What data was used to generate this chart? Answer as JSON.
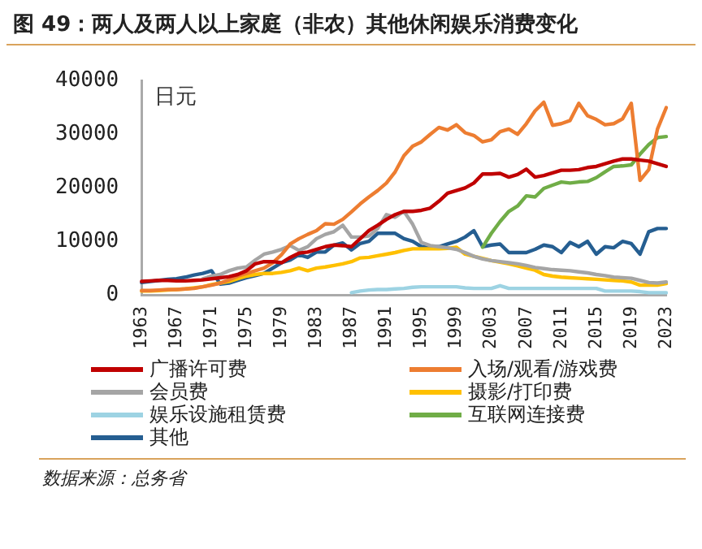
{
  "chart_data": {
    "type": "line",
    "title": "图 49：两人及两人以上家庭（非农）其他休闲娱乐消费变化",
    "ylabel": "日元",
    "categories": [
      "1963",
      null,
      null,
      null,
      "1967",
      null,
      null,
      null,
      "1971",
      null,
      null,
      null,
      "1975",
      null,
      null,
      null,
      "1979",
      null,
      null,
      null,
      "1983",
      null,
      null,
      null,
      "1987",
      null,
      null,
      null,
      "1991",
      null,
      null,
      null,
      "1995",
      null,
      null,
      null,
      "1999",
      null,
      null,
      null,
      "2003",
      null,
      null,
      null,
      "2007",
      null,
      null,
      null,
      "2011",
      null,
      null,
      null,
      "2015",
      null,
      null,
      null,
      "2019",
      null,
      null,
      null,
      "2023"
    ],
    "ylim": [
      0,
      40000
    ],
    "yticks": [
      0,
      10000,
      20000,
      30000,
      40000
    ],
    "grid": false,
    "legend": "bottom",
    "marker": "none",
    "line_style": "solid",
    "series": [
      {
        "name": "广播许可费",
        "color": "#c00000",
        "values": [
          2500,
          2600,
          2700,
          2700,
          2600,
          2600,
          2700,
          2800,
          3000,
          3200,
          3400,
          3800,
          4500,
          5800,
          6200,
          6200,
          6000,
          7000,
          7800,
          8000,
          8500,
          9000,
          9300,
          9200,
          9000,
          10500,
          12000,
          13000,
          14100,
          15000,
          15600,
          15600,
          15800,
          16200,
          17500,
          19000,
          19500,
          20000,
          20900,
          22600,
          22600,
          22700,
          22000,
          22500,
          23500,
          22000,
          22300,
          22800,
          23300,
          23300,
          23400,
          23800,
          24000,
          24500,
          25000,
          25400,
          25400,
          25200,
          25000,
          24500,
          24000
        ]
      },
      {
        "name": "入场/观看/游戏费",
        "color": "#ed7d31",
        "values": [
          800,
          800,
          900,
          1000,
          1000,
          1100,
          1200,
          1500,
          1800,
          2200,
          2800,
          3500,
          4000,
          4500,
          5000,
          6000,
          7500,
          9500,
          10500,
          11300,
          12000,
          13300,
          13200,
          14100,
          15500,
          17000,
          18300,
          19500,
          20900,
          23000,
          26000,
          27800,
          28600,
          30000,
          31300,
          30800,
          31800,
          30300,
          29800,
          28600,
          29000,
          30500,
          31000,
          30000,
          32000,
          34400,
          36000,
          31700,
          32000,
          32600,
          35800,
          33500,
          32800,
          31800,
          32000,
          32900,
          35800,
          21400,
          23400,
          31000,
          35000
        ]
      },
      {
        "name": "会员费",
        "color": "#a5a5a5",
        "values": [
          null,
          null,
          null,
          null,
          null,
          null,
          null,
          3000,
          3500,
          3800,
          4500,
          5000,
          5200,
          6500,
          7600,
          8000,
          8500,
          9200,
          8300,
          9000,
          10500,
          11300,
          11800,
          13000,
          10800,
          10800,
          11000,
          12400,
          15000,
          14500,
          15600,
          13200,
          9800,
          9200,
          9000,
          8800,
          8500,
          7900,
          7200,
          6700,
          6400,
          6200,
          6000,
          5800,
          5500,
          5100,
          4900,
          4700,
          4600,
          4500,
          4300,
          4100,
          3800,
          3600,
          3300,
          3200,
          3100,
          2700,
          2300,
          2200,
          2400
        ]
      },
      {
        "name": "摄影/打印费",
        "color": "#ffc000",
        "values": [
          700,
          700,
          800,
          900,
          1000,
          1100,
          1300,
          1500,
          1900,
          2200,
          2500,
          3000,
          3500,
          3800,
          4000,
          4000,
          4200,
          4500,
          5000,
          4500,
          5000,
          5200,
          5500,
          5800,
          6200,
          6900,
          7000,
          7300,
          7600,
          7900,
          8300,
          8600,
          8600,
          8600,
          8600,
          8700,
          8900,
          7600,
          7200,
          6800,
          6400,
          6100,
          5800,
          5400,
          5000,
          4600,
          3800,
          3500,
          3300,
          3200,
          3100,
          3000,
          2900,
          2800,
          2700,
          2600,
          2400,
          1800,
          1800,
          1800,
          2100
        ]
      },
      {
        "name": "娱乐设施租赁费",
        "color": "#9dd3e3",
        "values": [
          null,
          null,
          null,
          null,
          null,
          null,
          null,
          null,
          null,
          null,
          null,
          null,
          null,
          null,
          null,
          null,
          null,
          null,
          null,
          null,
          null,
          null,
          null,
          null,
          400,
          700,
          900,
          1000,
          1000,
          1100,
          1200,
          1400,
          1500,
          1500,
          1500,
          1500,
          1500,
          1300,
          1200,
          1200,
          1200,
          1700,
          1200,
          1200,
          1200,
          1200,
          1200,
          1200,
          1200,
          1200,
          1200,
          1200,
          1200,
          700,
          700,
          700,
          700,
          600,
          400,
          400,
          400
        ]
      },
      {
        "name": "互联网连接费",
        "color": "#70ad47",
        "values": [
          null,
          null,
          null,
          null,
          null,
          null,
          null,
          null,
          null,
          null,
          null,
          null,
          null,
          null,
          null,
          null,
          null,
          null,
          null,
          null,
          null,
          null,
          null,
          null,
          null,
          null,
          null,
          null,
          null,
          null,
          null,
          null,
          null,
          null,
          null,
          null,
          null,
          null,
          null,
          8900,
          11500,
          13700,
          15600,
          16600,
          18500,
          18300,
          19900,
          20500,
          21100,
          20900,
          21100,
          21200,
          21900,
          23000,
          24000,
          24100,
          24300,
          26300,
          28100,
          29400,
          29600
        ]
      },
      {
        "name": "其他",
        "color": "#255e91",
        "values": [
          2300,
          2500,
          2700,
          2900,
          3000,
          3300,
          3700,
          4000,
          4500,
          2000,
          2200,
          2700,
          3200,
          3600,
          4000,
          5000,
          6000,
          6500,
          7500,
          7000,
          8000,
          8000,
          9300,
          9700,
          8400,
          9600,
          10000,
          11500,
          11500,
          11500,
          10500,
          10000,
          9000,
          9000,
          9000,
          9500,
          10000,
          10800,
          12000,
          9000,
          9300,
          9500,
          7900,
          7900,
          7900,
          8500,
          9300,
          9000,
          7900,
          9800,
          9000,
          10000,
          7600,
          9000,
          8800,
          10000,
          9600,
          7600,
          11800,
          12400,
          12400
        ]
      }
    ],
    "annotations": [
      "数据来源：总务省"
    ]
  }
}
